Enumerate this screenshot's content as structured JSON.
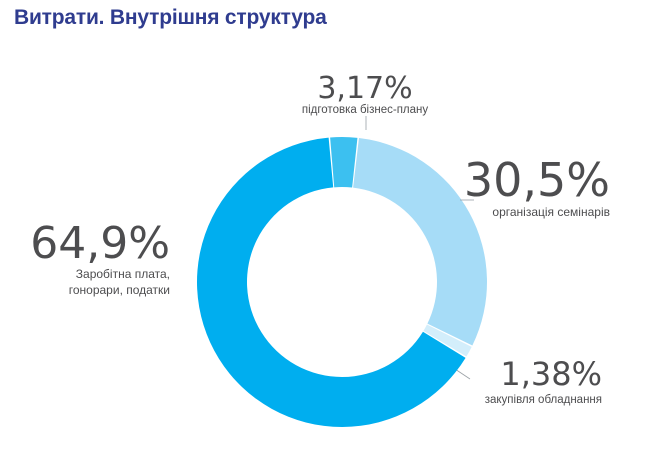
{
  "title": "Витрати. Внутрішня структура",
  "chart_data": {
    "type": "pie",
    "donut": true,
    "title": "Витрати. Внутрішня структура",
    "slices": [
      {
        "percent_label": "3,17%",
        "value": 3.17,
        "label": [
          "підготовка бізнес-плану"
        ],
        "color": "#3cc0f0"
      },
      {
        "percent_label": "30,5%",
        "value": 30.5,
        "label": [
          "організація семінарів"
        ],
        "color": "#a6dcf7"
      },
      {
        "percent_label": "1,38%",
        "value": 1.38,
        "label": [
          "закупівля обладнання"
        ],
        "color": "#d3eefb"
      },
      {
        "percent_label": "64,9%",
        "value": 64.9,
        "label": [
          "Заробітна плата,",
          "гонорари, податки"
        ],
        "color": "#00aeef"
      }
    ]
  }
}
